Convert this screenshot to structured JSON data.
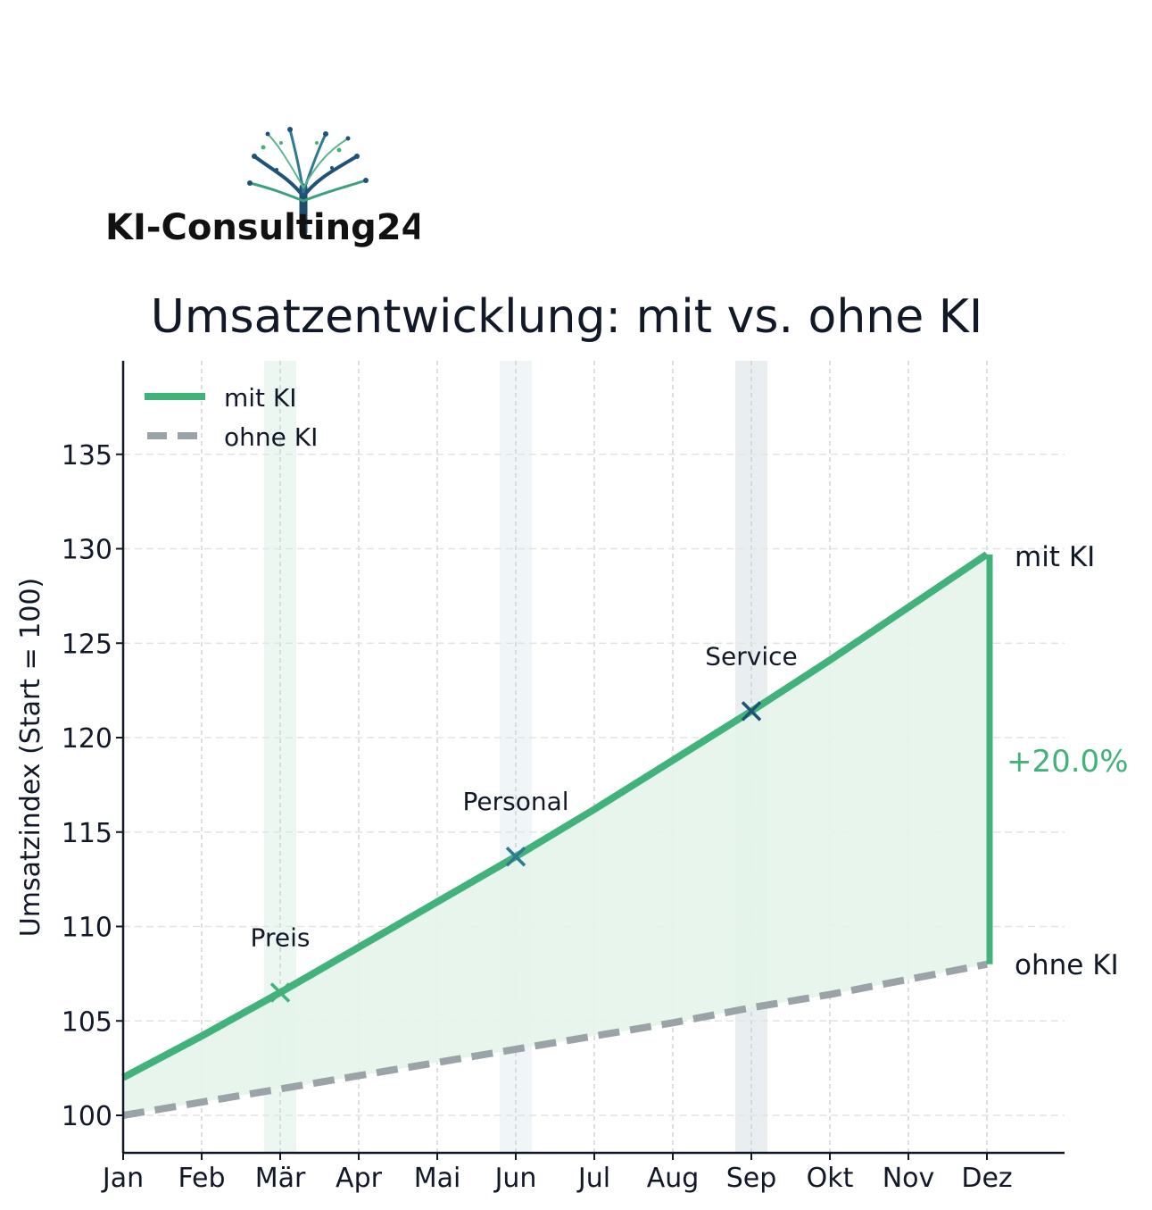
{
  "logo": {
    "text": "KI-Consulting24",
    "icon": "tree-circuit-icon"
  },
  "chart_data": {
    "type": "line",
    "title": "Umsatzentwicklung: mit vs. ohne KI",
    "ylabel": "Umsatzindex (Start = 100)",
    "xlabel": "",
    "categories": [
      "Jan",
      "Feb",
      "Mär",
      "Apr",
      "Mai",
      "Jun",
      "Jul",
      "Aug",
      "Sep",
      "Okt",
      "Nov",
      "Dez"
    ],
    "ylim": [
      98,
      140
    ],
    "yticks": [
      100,
      105,
      110,
      115,
      120,
      125,
      130,
      135
    ],
    "grid": true,
    "legend": "top-left",
    "series": [
      {
        "name": "mit KI",
        "style": "solid",
        "color": "#41b37a",
        "values": [
          102.0,
          104.2,
          106.5,
          108.9,
          111.3,
          113.7,
          116.2,
          118.8,
          121.4,
          124.1,
          126.9,
          129.7
        ]
      },
      {
        "name": "ohne KI",
        "style": "dashed",
        "color": "#9aa3a8",
        "values": [
          100.0,
          100.7,
          101.4,
          102.1,
          102.8,
          103.5,
          104.2,
          104.9,
          105.7,
          106.4,
          107.2,
          108.0
        ]
      }
    ],
    "highlights": [
      {
        "month": "Mär",
        "color": "#41b37a"
      },
      {
        "month": "Jun",
        "color": "#6e9cbf"
      },
      {
        "month": "Sep",
        "color": "#2b5f7a"
      }
    ],
    "annotations": [
      {
        "label": "Preis",
        "month": "Mär",
        "value": 106.5,
        "color": "#41b37a"
      },
      {
        "label": "Personal",
        "month": "Jun",
        "value": 113.7,
        "color": "#2e7a92"
      },
      {
        "label": "Service",
        "month": "Sep",
        "value": 121.4,
        "color": "#1f5277"
      }
    ],
    "end_labels": {
      "top": "mit KI",
      "bottom": "ohne KI"
    },
    "difference_label": "+20.0%",
    "colors": {
      "accent": "#41b37a",
      "baseline": "#9aa3a8",
      "fill": "#e4f4ea",
      "text": "#111827"
    }
  }
}
